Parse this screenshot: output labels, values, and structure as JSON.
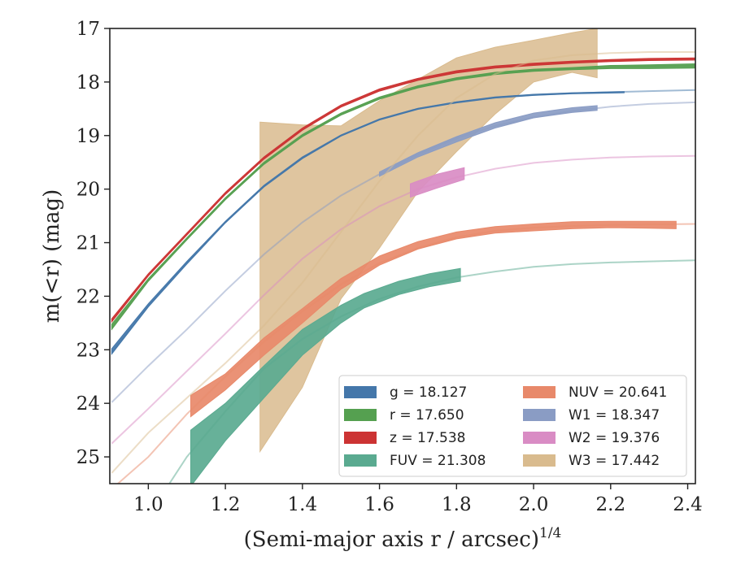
{
  "chart_data": {
    "type": "area",
    "xlabel": "(Semi-major axis r / arcsec)",
    "xlabel_sup": "1/4",
    "ylabel": "m(<r) (mag)",
    "xlim": [
      0.9,
      2.42
    ],
    "ylim": [
      25.5,
      17.0
    ],
    "y_inverted": true,
    "grid": false,
    "legend_position": "lower-right",
    "xticks": [
      "1.0",
      "1.2",
      "1.4",
      "1.6",
      "1.8",
      "2.0",
      "2.2",
      "2.4"
    ],
    "yticks": [
      "17",
      "18",
      "19",
      "20",
      "21",
      "22",
      "23",
      "24",
      "25"
    ],
    "series": [
      {
        "name": "g",
        "label": "g = 18.127",
        "color": "#4477aa",
        "model": [
          [
            0.905,
            23.05
          ],
          [
            1.0,
            22.18
          ],
          [
            1.1,
            21.38
          ],
          [
            1.2,
            20.62
          ],
          [
            1.3,
            19.95
          ],
          [
            1.4,
            19.42
          ],
          [
            1.5,
            19.0
          ],
          [
            1.6,
            18.7
          ],
          [
            1.7,
            18.5
          ],
          [
            1.8,
            18.38
          ],
          [
            1.9,
            18.29
          ],
          [
            2.0,
            18.24
          ],
          [
            2.1,
            18.21
          ],
          [
            2.2,
            18.19
          ],
          [
            2.3,
            18.17
          ],
          [
            2.42,
            18.15
          ]
        ],
        "band": [
          [
            0.905,
            23.08,
            22.98
          ],
          [
            1.0,
            22.2,
            22.14
          ],
          [
            1.1,
            21.4,
            21.35
          ],
          [
            1.2,
            20.63,
            20.6
          ],
          [
            1.3,
            19.96,
            19.93
          ],
          [
            1.4,
            19.43,
            19.4
          ],
          [
            1.5,
            19.01,
            18.99
          ],
          [
            1.6,
            18.71,
            18.69
          ],
          [
            1.7,
            18.51,
            18.49
          ],
          [
            1.8,
            18.39,
            18.37
          ],
          [
            1.9,
            18.3,
            18.28
          ],
          [
            2.0,
            18.25,
            18.23
          ],
          [
            2.1,
            18.22,
            18.2
          ],
          [
            2.235,
            18.2,
            18.18
          ]
        ]
      },
      {
        "name": "r",
        "label": "r = 17.650",
        "color": "#55a050",
        "model": [
          [
            0.905,
            22.58
          ],
          [
            1.0,
            21.7
          ],
          [
            1.1,
            20.93
          ],
          [
            1.2,
            20.18
          ],
          [
            1.3,
            19.52
          ],
          [
            1.4,
            19.0
          ],
          [
            1.5,
            18.6
          ],
          [
            1.6,
            18.3
          ],
          [
            1.7,
            18.09
          ],
          [
            1.8,
            17.94
          ],
          [
            1.9,
            17.84
          ],
          [
            2.0,
            17.78
          ],
          [
            2.1,
            17.75
          ],
          [
            2.2,
            17.72
          ],
          [
            2.3,
            17.71
          ],
          [
            2.42,
            17.7
          ]
        ],
        "band": [
          [
            0.905,
            22.62,
            22.52
          ],
          [
            1.0,
            21.72,
            21.67
          ],
          [
            1.1,
            20.95,
            20.91
          ],
          [
            1.2,
            20.2,
            20.16
          ],
          [
            1.3,
            19.54,
            19.5
          ],
          [
            1.4,
            19.02,
            18.98
          ],
          [
            1.5,
            18.62,
            18.58
          ],
          [
            1.6,
            18.32,
            18.28
          ],
          [
            1.7,
            18.11,
            18.07
          ],
          [
            1.8,
            17.96,
            17.92
          ],
          [
            1.9,
            17.86,
            17.82
          ],
          [
            2.0,
            17.8,
            17.76
          ],
          [
            2.1,
            17.77,
            17.73
          ],
          [
            2.2,
            17.75,
            17.69
          ],
          [
            2.3,
            17.75,
            17.68
          ],
          [
            2.42,
            17.74,
            17.66
          ]
        ]
      },
      {
        "name": "z",
        "label": "z = 17.538",
        "color": "#cc3333",
        "model": [
          [
            0.905,
            22.45
          ],
          [
            1.0,
            21.6
          ],
          [
            1.1,
            20.84
          ],
          [
            1.2,
            20.08
          ],
          [
            1.3,
            19.42
          ],
          [
            1.4,
            18.88
          ],
          [
            1.5,
            18.45
          ],
          [
            1.6,
            18.15
          ],
          [
            1.7,
            17.95
          ],
          [
            1.8,
            17.81
          ],
          [
            1.9,
            17.72
          ],
          [
            2.0,
            17.67
          ],
          [
            2.1,
            17.63
          ],
          [
            2.2,
            17.6
          ],
          [
            2.3,
            17.58
          ],
          [
            2.42,
            17.57
          ]
        ],
        "band": [
          [
            0.905,
            22.48,
            22.42
          ],
          [
            1.0,
            21.62,
            21.58
          ],
          [
            1.1,
            20.86,
            20.82
          ],
          [
            1.2,
            20.1,
            20.06
          ],
          [
            1.3,
            19.44,
            19.4
          ],
          [
            1.4,
            18.9,
            18.86
          ],
          [
            1.5,
            18.47,
            18.43
          ],
          [
            1.6,
            18.17,
            18.13
          ],
          [
            1.7,
            17.97,
            17.93
          ],
          [
            1.8,
            17.83,
            17.79
          ],
          [
            1.9,
            17.74,
            17.7
          ],
          [
            2.0,
            17.69,
            17.65
          ],
          [
            2.1,
            17.65,
            17.61
          ],
          [
            2.2,
            17.62,
            17.58
          ],
          [
            2.3,
            17.6,
            17.56
          ],
          [
            2.42,
            17.59,
            17.55
          ]
        ]
      },
      {
        "name": "FUV",
        "label": "FUV = 21.308",
        "color": "#5aaa90",
        "model": [
          [
            1.05,
            25.55
          ],
          [
            1.1,
            25.0
          ],
          [
            1.2,
            24.15
          ],
          [
            1.3,
            23.35
          ],
          [
            1.4,
            22.8
          ],
          [
            1.5,
            22.38
          ],
          [
            1.6,
            22.05
          ],
          [
            1.7,
            21.82
          ],
          [
            1.8,
            21.65
          ],
          [
            1.9,
            21.54
          ],
          [
            2.0,
            21.45
          ],
          [
            2.1,
            21.4
          ],
          [
            2.2,
            21.37
          ],
          [
            2.3,
            21.35
          ],
          [
            2.42,
            21.33
          ]
        ],
        "band": [
          [
            1.11,
            25.55,
            24.5
          ],
          [
            1.2,
            24.7,
            24.0
          ],
          [
            1.3,
            23.9,
            23.3
          ],
          [
            1.4,
            23.1,
            22.62
          ],
          [
            1.5,
            22.5,
            22.17
          ],
          [
            1.56,
            22.22,
            21.95
          ],
          [
            1.65,
            21.97,
            21.72
          ],
          [
            1.73,
            21.82,
            21.58
          ],
          [
            1.81,
            21.72,
            21.48
          ]
        ]
      },
      {
        "name": "NUV",
        "label": "NUV = 20.641",
        "color": "#e8896a",
        "model": [
          [
            0.905,
            25.6
          ],
          [
            1.0,
            25.0
          ],
          [
            1.1,
            24.2
          ],
          [
            1.2,
            23.5
          ],
          [
            1.3,
            22.85
          ],
          [
            1.4,
            22.28
          ],
          [
            1.5,
            21.78
          ],
          [
            1.6,
            21.38
          ],
          [
            1.7,
            21.1
          ],
          [
            1.8,
            20.9
          ],
          [
            1.9,
            20.78
          ],
          [
            2.0,
            20.72
          ],
          [
            2.1,
            20.69
          ],
          [
            2.2,
            20.67
          ],
          [
            2.3,
            20.66
          ],
          [
            2.42,
            20.65
          ]
        ],
        "band": [
          [
            1.11,
            24.25,
            23.85
          ],
          [
            1.2,
            23.75,
            23.45
          ],
          [
            1.3,
            23.1,
            22.78
          ],
          [
            1.4,
            22.5,
            22.23
          ],
          [
            1.5,
            21.87,
            21.67
          ],
          [
            1.6,
            21.42,
            21.25
          ],
          [
            1.7,
            21.12,
            20.98
          ],
          [
            1.8,
            20.93,
            20.8
          ],
          [
            1.9,
            20.82,
            20.7
          ],
          [
            2.0,
            20.78,
            20.65
          ],
          [
            2.1,
            20.74,
            20.61
          ],
          [
            2.2,
            20.72,
            20.6
          ],
          [
            2.3,
            20.73,
            20.6
          ],
          [
            2.37,
            20.74,
            20.6
          ]
        ]
      },
      {
        "name": "W1",
        "label": "W1 = 18.347",
        "color": "#8a9cc4",
        "model": [
          [
            0.905,
            23.98
          ],
          [
            1.0,
            23.3
          ],
          [
            1.1,
            22.62
          ],
          [
            1.2,
            21.9
          ],
          [
            1.3,
            21.22
          ],
          [
            1.4,
            20.62
          ],
          [
            1.5,
            20.12
          ],
          [
            1.6,
            19.72
          ],
          [
            1.7,
            19.35
          ],
          [
            1.8,
            19.05
          ],
          [
            1.9,
            18.82
          ],
          [
            2.0,
            18.66
          ],
          [
            2.1,
            18.54
          ],
          [
            2.2,
            18.46
          ],
          [
            2.3,
            18.41
          ],
          [
            2.42,
            18.38
          ]
        ],
        "band": [
          [
            1.6,
            19.76,
            19.68
          ],
          [
            1.7,
            19.4,
            19.32
          ],
          [
            1.8,
            19.12,
            19.02
          ],
          [
            1.9,
            18.86,
            18.76
          ],
          [
            2.0,
            18.67,
            18.58
          ],
          [
            2.1,
            18.57,
            18.48
          ],
          [
            2.165,
            18.53,
            18.44
          ]
        ]
      },
      {
        "name": "W2",
        "label": "W2 = 19.376",
        "color": "#d98cc4",
        "model": [
          [
            0.905,
            24.75
          ],
          [
            1.0,
            24.1
          ],
          [
            1.1,
            23.4
          ],
          [
            1.2,
            22.7
          ],
          [
            1.3,
            21.98
          ],
          [
            1.4,
            21.3
          ],
          [
            1.5,
            20.75
          ],
          [
            1.6,
            20.32
          ],
          [
            1.7,
            20.0
          ],
          [
            1.8,
            19.78
          ],
          [
            1.9,
            19.62
          ],
          [
            2.0,
            19.51
          ],
          [
            2.1,
            19.45
          ],
          [
            2.2,
            19.41
          ],
          [
            2.3,
            19.39
          ],
          [
            2.42,
            19.38
          ]
        ],
        "band": [
          [
            1.68,
            20.15,
            19.9
          ],
          [
            1.75,
            19.98,
            19.72
          ],
          [
            1.82,
            19.82,
            19.6
          ]
        ]
      },
      {
        "name": "W3",
        "label": "W3 = 17.442",
        "color": "#d9bb8e",
        "model": [
          [
            0.905,
            25.3
          ],
          [
            1.0,
            24.55
          ],
          [
            1.1,
            23.9
          ],
          [
            1.2,
            23.25
          ],
          [
            1.3,
            22.55
          ],
          [
            1.4,
            21.75
          ],
          [
            1.5,
            20.8
          ],
          [
            1.6,
            19.85
          ],
          [
            1.7,
            19.0
          ],
          [
            1.8,
            18.3
          ],
          [
            1.9,
            17.85
          ],
          [
            2.0,
            17.6
          ],
          [
            2.1,
            17.5
          ],
          [
            2.2,
            17.46
          ],
          [
            2.3,
            17.44
          ],
          [
            2.42,
            17.44
          ]
        ],
        "band": [
          [
            1.29,
            24.9,
            18.75
          ],
          [
            1.4,
            23.7,
            18.8
          ],
          [
            1.5,
            22.05,
            18.82
          ],
          [
            1.6,
            21.1,
            18.35
          ],
          [
            1.7,
            20.05,
            17.95
          ],
          [
            1.8,
            19.3,
            17.55
          ],
          [
            1.9,
            18.6,
            17.35
          ],
          [
            2.0,
            18.0,
            17.22
          ],
          [
            2.1,
            17.82,
            17.08
          ],
          [
            2.165,
            17.92,
            17.0
          ]
        ]
      }
    ]
  }
}
